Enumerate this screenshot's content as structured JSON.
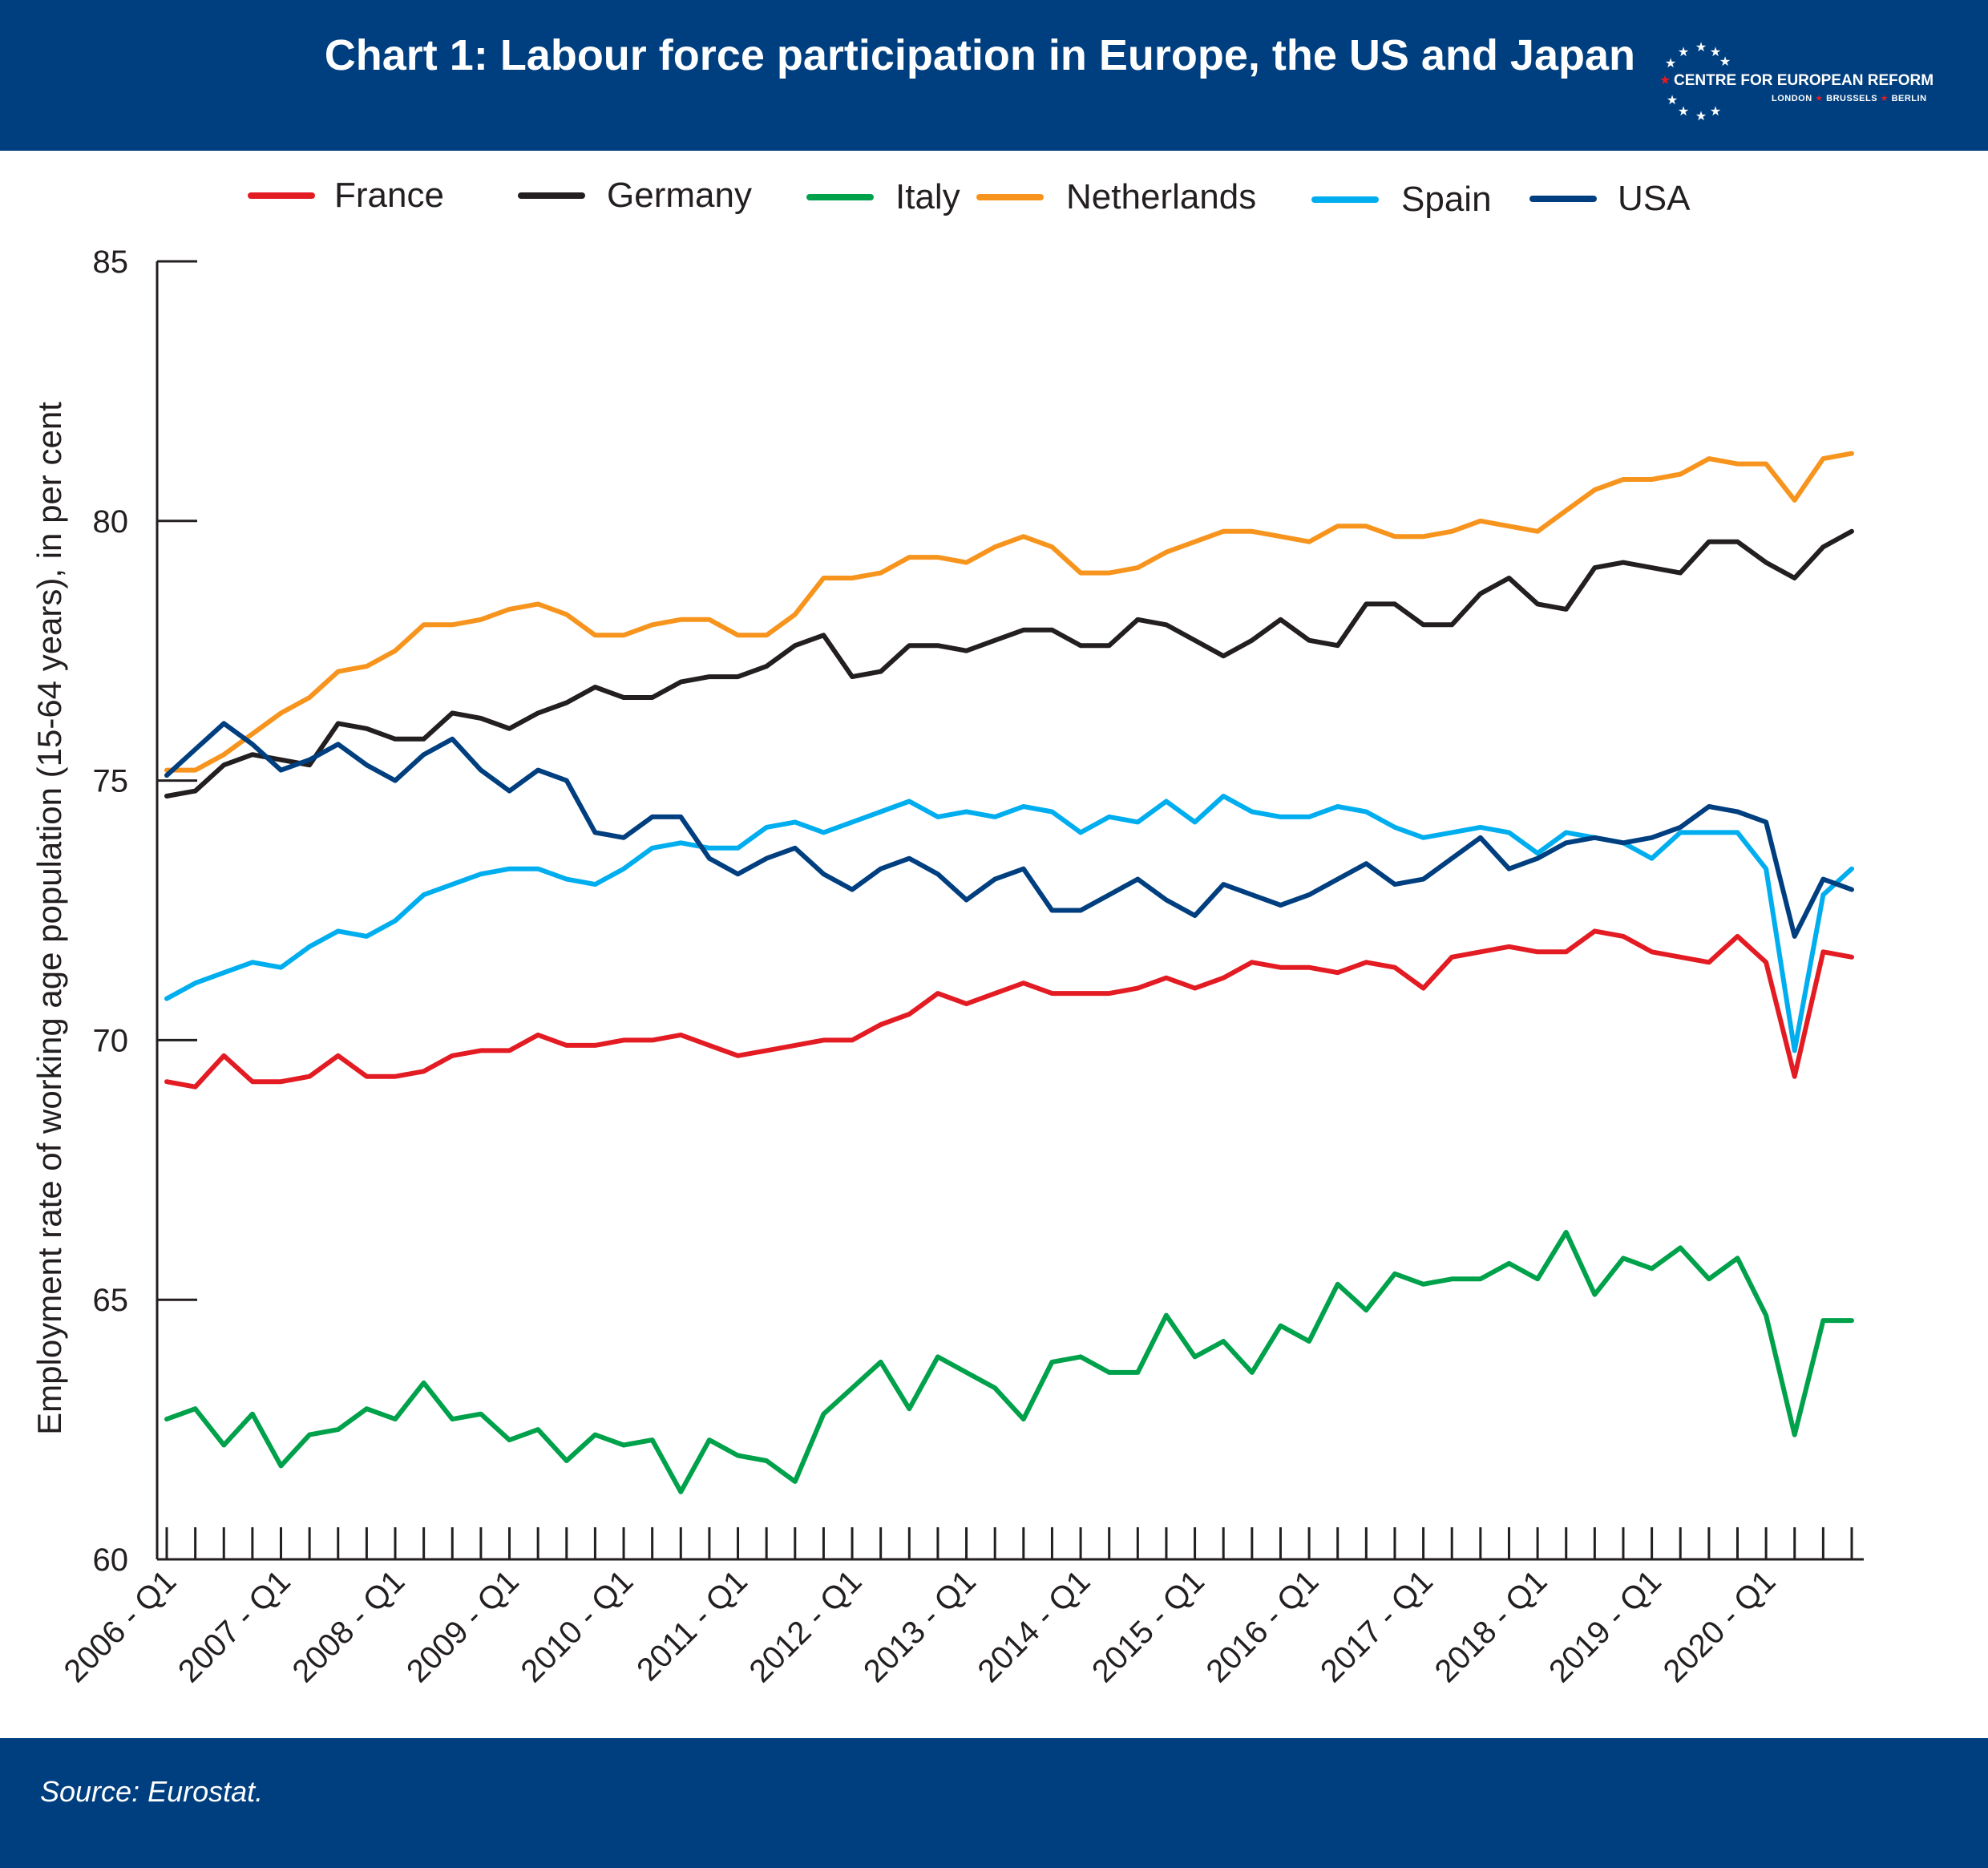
{
  "header": {
    "title": "Chart 1: Labour force participation in Europe, the US and Japan",
    "logo_name": "CENTRE FOR EUROPEAN REFORM",
    "logo_cities": [
      "LONDON",
      "BRUSSELS",
      "BERLIN"
    ]
  },
  "footer": {
    "source": "Source: Eurostat."
  },
  "chart_data": {
    "type": "line",
    "ylabel": "Employment rate of working age population (15-64 years), in per cent",
    "ylim": [
      60,
      85
    ],
    "yticks": [
      60,
      65,
      70,
      75,
      80,
      85
    ],
    "grid": false,
    "legend_position": "top",
    "x": [
      "2006 - Q1",
      "2006 - Q2",
      "2006 - Q3",
      "2006 - Q4",
      "2007 - Q1",
      "2007 - Q2",
      "2007 - Q3",
      "2007 - Q4",
      "2008 - Q1",
      "2008 - Q2",
      "2008 - Q3",
      "2008 - Q4",
      "2009 - Q1",
      "2009 - Q2",
      "2009 - Q3",
      "2009 - Q4",
      "2010 - Q1",
      "2010 - Q2",
      "2010 - Q3",
      "2010 - Q4",
      "2011 - Q1",
      "2011 - Q2",
      "2011 - Q3",
      "2011 - Q4",
      "2012 - Q1",
      "2012 - Q2",
      "2012 - Q3",
      "2012 - Q4",
      "2013 - Q1",
      "2013 - Q2",
      "2013 - Q3",
      "2013 - Q4",
      "2014 - Q1",
      "2014 - Q2",
      "2014 - Q3",
      "2014 - Q4",
      "2015 - Q1",
      "2015 - Q2",
      "2015 - Q3",
      "2015 - Q4",
      "2016 - Q1",
      "2016 - Q2",
      "2016 - Q3",
      "2016 - Q4",
      "2017 - Q1",
      "2017 - Q2",
      "2017 - Q3",
      "2017 - Q4",
      "2018 - Q1",
      "2018 - Q2",
      "2018 - Q3",
      "2018 - Q4",
      "2019 - Q1",
      "2019 - Q2",
      "2019 - Q3",
      "2019 - Q4",
      "2020 - Q1",
      "2020 - Q2",
      "2020 - Q3",
      "2020 - Q4"
    ],
    "xtick_labels": [
      "2006 - Q1",
      "2007 - Q1",
      "2008 - Q1",
      "2009 - Q1",
      "2010 - Q1",
      "2011 - Q1",
      "2012 - Q1",
      "2013 - Q1",
      "2014 - Q1",
      "2015 - Q1",
      "2016 - Q1",
      "2017 - Q1",
      "2018 - Q1",
      "2019 - Q1",
      "2020 - Q1"
    ],
    "series": [
      {
        "name": "France",
        "color": "#e31b23",
        "values": [
          69.2,
          69.1,
          69.7,
          69.2,
          69.2,
          69.3,
          69.7,
          69.3,
          69.3,
          69.4,
          69.7,
          69.8,
          69.8,
          70.1,
          69.9,
          69.9,
          70.0,
          70.0,
          70.1,
          69.9,
          69.7,
          69.8,
          69.9,
          70.0,
          70.0,
          70.3,
          70.5,
          70.9,
          70.7,
          70.9,
          71.1,
          70.9,
          70.9,
          70.9,
          71.0,
          71.2,
          71.0,
          71.2,
          71.5,
          71.4,
          71.4,
          71.3,
          71.5,
          71.4,
          71.0,
          71.6,
          71.7,
          71.8,
          71.7,
          71.7,
          72.1,
          72.0,
          71.7,
          71.6,
          71.5,
          72.0,
          71.5,
          69.3,
          71.7,
          71.6
        ]
      },
      {
        "name": "Germany",
        "color": "#231f20",
        "values": [
          74.7,
          74.8,
          75.3,
          75.5,
          75.4,
          75.3,
          76.1,
          76.0,
          75.8,
          75.8,
          76.3,
          76.2,
          76.0,
          76.3,
          76.5,
          76.8,
          76.6,
          76.6,
          76.9,
          77.0,
          77.0,
          77.2,
          77.6,
          77.8,
          77.0,
          77.1,
          77.6,
          77.6,
          77.5,
          77.7,
          77.9,
          77.9,
          77.6,
          77.6,
          78.1,
          78.0,
          77.7,
          77.4,
          77.7,
          78.1,
          77.7,
          77.6,
          78.4,
          78.4,
          78.0,
          78.0,
          78.6,
          78.9,
          78.4,
          78.3,
          79.1,
          79.2,
          79.1,
          79.0,
          79.6,
          79.6,
          79.2,
          78.9,
          79.5,
          79.8
        ]
      },
      {
        "name": "Italy",
        "color": "#00a14b",
        "values": [
          62.7,
          62.9,
          62.2,
          62.8,
          61.8,
          62.4,
          62.5,
          62.9,
          62.7,
          63.4,
          62.7,
          62.8,
          62.3,
          62.5,
          61.9,
          62.4,
          62.2,
          62.3,
          61.3,
          62.3,
          62.0,
          61.9,
          61.5,
          62.8,
          63.3,
          63.8,
          62.9,
          63.9,
          63.6,
          63.3,
          62.7,
          63.8,
          63.9,
          63.6,
          63.6,
          64.7,
          63.9,
          64.2,
          63.6,
          64.5,
          64.2,
          65.3,
          64.8,
          65.5,
          65.3,
          65.4,
          65.4,
          65.7,
          65.4,
          66.3,
          65.1,
          65.8,
          65.6,
          66.0,
          65.4,
          65.8,
          64.7,
          62.4,
          64.6,
          64.6
        ]
      },
      {
        "name": "Netherlands",
        "color": "#f7941d",
        "values": [
          75.2,
          75.2,
          75.5,
          75.9,
          76.3,
          76.6,
          77.1,
          77.2,
          77.5,
          78.0,
          78.0,
          78.1,
          78.3,
          78.4,
          78.2,
          77.8,
          77.8,
          78.0,
          78.1,
          78.1,
          77.8,
          77.8,
          78.2,
          78.9,
          78.9,
          79.0,
          79.3,
          79.3,
          79.2,
          79.5,
          79.7,
          79.5,
          79.0,
          79.0,
          79.1,
          79.4,
          79.6,
          79.8,
          79.8,
          79.7,
          79.6,
          79.9,
          79.9,
          79.7,
          79.7,
          79.8,
          80.0,
          79.9,
          79.8,
          80.2,
          80.6,
          80.8,
          80.8,
          80.9,
          81.2,
          81.1,
          81.1,
          80.4,
          81.2,
          81.3
        ]
      },
      {
        "name": "Spain",
        "color": "#00aeef",
        "values": [
          70.8,
          71.1,
          71.3,
          71.5,
          71.4,
          71.8,
          72.1,
          72.0,
          72.3,
          72.8,
          73.0,
          73.2,
          73.3,
          73.3,
          73.1,
          73.0,
          73.3,
          73.7,
          73.8,
          73.7,
          73.7,
          74.1,
          74.2,
          74.0,
          74.2,
          74.4,
          74.6,
          74.3,
          74.4,
          74.3,
          74.5,
          74.4,
          74.0,
          74.3,
          74.2,
          74.6,
          74.2,
          74.7,
          74.4,
          74.3,
          74.3,
          74.5,
          74.4,
          74.1,
          73.9,
          74.0,
          74.1,
          74.0,
          73.6,
          74.0,
          73.9,
          73.8,
          73.5,
          74.0,
          74.0,
          74.0,
          73.3,
          69.8,
          72.8,
          73.3
        ]
      },
      {
        "name": "USA",
        "color": "#003f7f",
        "values": [
          75.1,
          75.6,
          76.1,
          75.7,
          75.2,
          75.4,
          75.7,
          75.3,
          75.0,
          75.5,
          75.8,
          75.2,
          74.8,
          75.2,
          75.0,
          74.0,
          73.9,
          74.3,
          74.3,
          73.5,
          73.2,
          73.5,
          73.7,
          73.2,
          72.9,
          73.3,
          73.5,
          73.2,
          72.7,
          73.1,
          73.3,
          72.5,
          72.5,
          72.8,
          73.1,
          72.7,
          72.4,
          73.0,
          72.8,
          72.6,
          72.8,
          73.1,
          73.4,
          73.0,
          73.1,
          73.5,
          73.9,
          73.3,
          73.5,
          73.8,
          73.9,
          73.8,
          73.9,
          74.1,
          74.5,
          74.4,
          74.2,
          72.0,
          73.1,
          72.9
        ]
      }
    ]
  }
}
